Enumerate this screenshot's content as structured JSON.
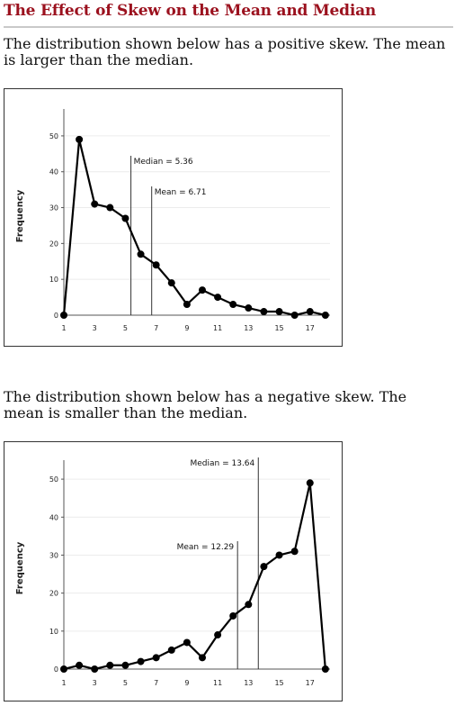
{
  "page": {
    "title": "The Effect of Skew on the Mean and Median",
    "para1": "The distribution shown below has a positive skew. The mean is larger than the median.",
    "para2": "The distribution shown below has a negative skew. The mean is smaller than the median."
  },
  "chart_data": [
    {
      "type": "line",
      "x": [
        1,
        2,
        3,
        4,
        5,
        6,
        7,
        8,
        9,
        10,
        11,
        12,
        13,
        14,
        15,
        16,
        17,
        18
      ],
      "values": [
        0,
        49,
        31,
        30,
        27,
        17,
        14,
        9,
        3,
        7,
        5,
        3,
        2,
        1,
        1,
        0,
        1,
        0
      ],
      "xticks": [
        1,
        3,
        5,
        7,
        9,
        11,
        13,
        15,
        17
      ],
      "yticks": [
        0,
        10,
        20,
        30,
        40,
        50
      ],
      "xlim": [
        1,
        18.3
      ],
      "ylim": [
        0,
        55
      ],
      "ylabel": "Frequency",
      "annotations": [
        {
          "label": "Median = 5.36",
          "x": 5.36,
          "y": 40
        },
        {
          "label": "Mean = 6.71",
          "x": 6.71,
          "y": 32
        }
      ]
    },
    {
      "type": "line",
      "x": [
        1,
        2,
        3,
        4,
        5,
        6,
        7,
        8,
        9,
        10,
        11,
        12,
        13,
        14,
        15,
        16,
        17,
        18
      ],
      "values": [
        0,
        1,
        0,
        1,
        1,
        2,
        3,
        5,
        7,
        3,
        9,
        14,
        17,
        27,
        30,
        31,
        49,
        0
      ],
      "xticks": [
        1,
        3,
        5,
        7,
        9,
        11,
        13,
        15,
        17
      ],
      "yticks": [
        0,
        10,
        20,
        30,
        40,
        50
      ],
      "xlim": [
        1,
        18.3
      ],
      "ylim": [
        0,
        55
      ],
      "ylabel": "Frequency",
      "annotations": [
        {
          "label": "Median = 13.64",
          "x": 13.64,
          "y": 54
        },
        {
          "label": "Mean = 12.29",
          "x": 12.29,
          "y": 32
        }
      ]
    }
  ]
}
